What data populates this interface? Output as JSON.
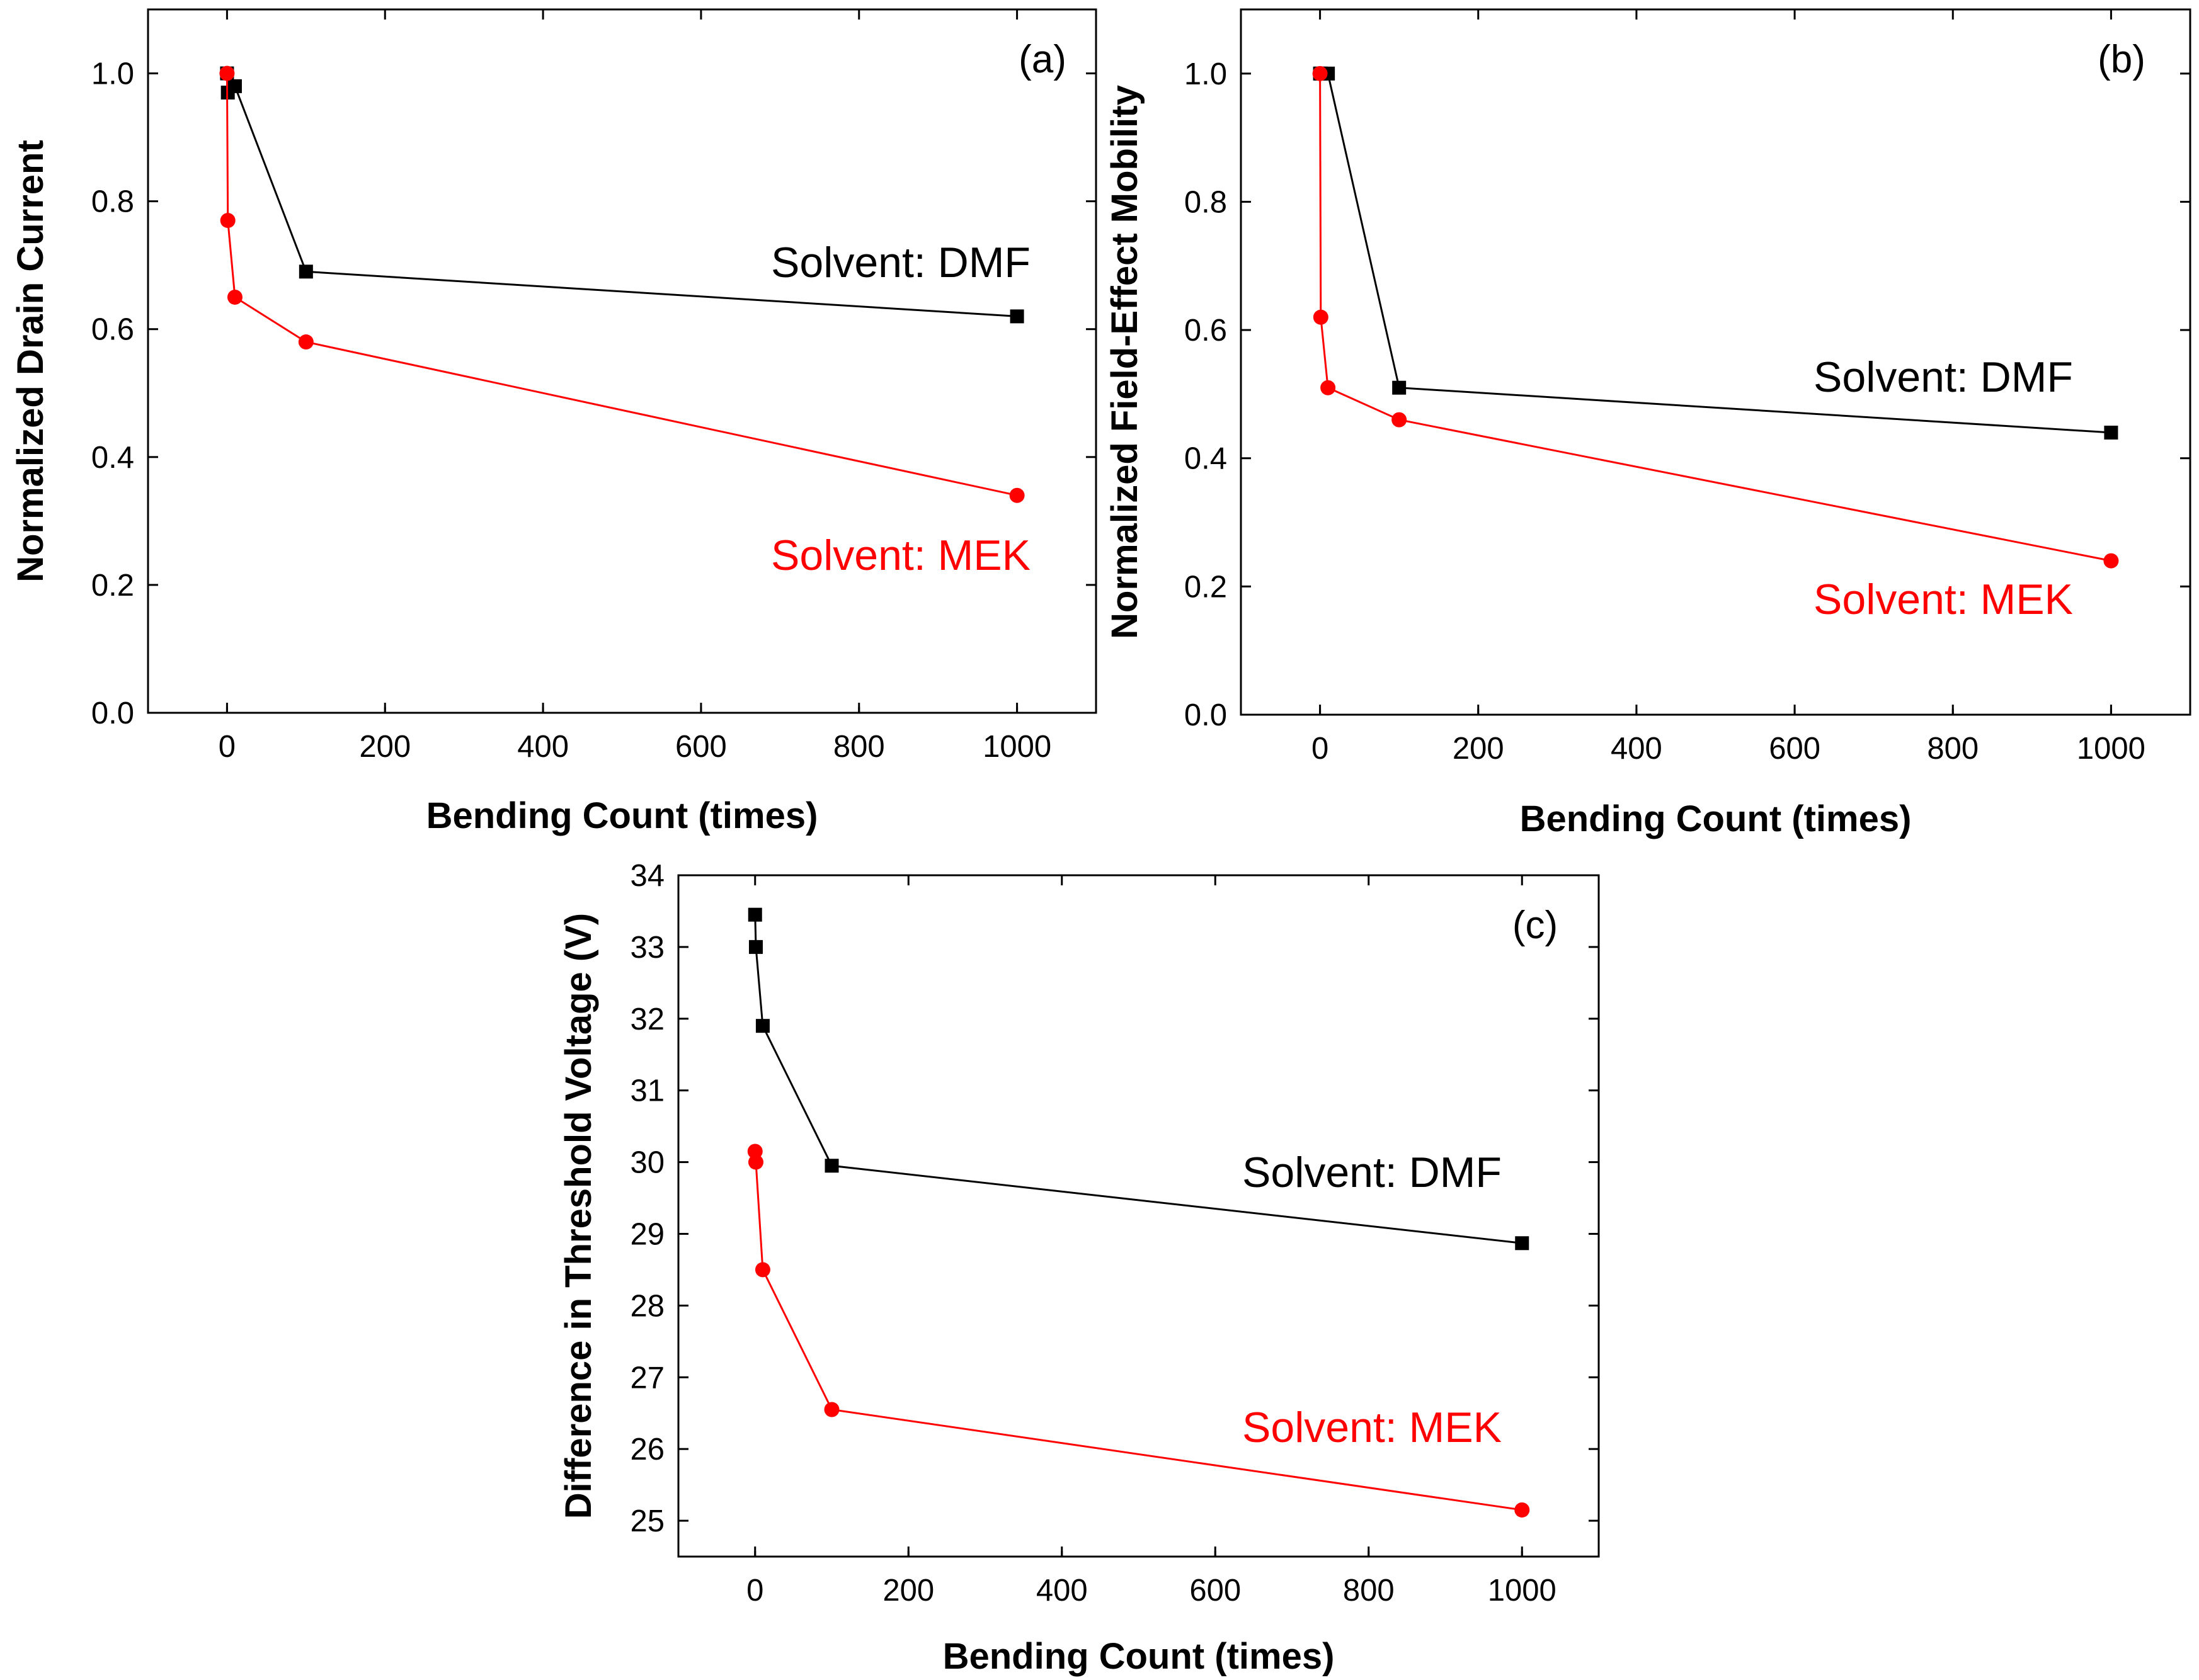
{
  "colors": {
    "dmf": "#000000",
    "mek": "#ff0000",
    "axis": "#000000"
  },
  "chart_data": [
    {
      "panel": "(a)",
      "type": "line",
      "xlabel": "Bending Count (times)",
      "ylabel": "Normalized Drain Current",
      "xlim": [
        -100,
        1100
      ],
      "ylim": [
        0.0,
        1.1
      ],
      "xticks": [
        0,
        200,
        400,
        600,
        800,
        1000
      ],
      "yticks": [
        0.0,
        0.2,
        0.4,
        0.6,
        0.8,
        1.0
      ],
      "ytick_labels": [
        "0.0",
        "0.2",
        "0.4",
        "0.6",
        "0.8",
        "1.0"
      ],
      "xtick_labels": [
        "0",
        "200",
        "400",
        "600",
        "800",
        "1000"
      ],
      "series": [
        {
          "name": "Solvent: DMF",
          "marker": "square",
          "x": [
            0,
            1,
            10,
            100,
            1000
          ],
          "y": [
            1.0,
            0.97,
            0.98,
            0.69,
            0.62
          ]
        },
        {
          "name": "Solvent: MEK",
          "marker": "circle",
          "x": [
            0,
            1,
            10,
            100,
            1000
          ],
          "y": [
            1.0,
            0.77,
            0.65,
            0.58,
            0.34
          ]
        }
      ]
    },
    {
      "panel": "(b)",
      "type": "line",
      "xlabel": "Bending Count (times)",
      "ylabel": "Normalized Field-Effect Mobility",
      "xlim": [
        -100,
        1100
      ],
      "ylim": [
        0.0,
        1.1
      ],
      "xticks": [
        0,
        200,
        400,
        600,
        800,
        1000
      ],
      "yticks": [
        0.0,
        0.2,
        0.4,
        0.6,
        0.8,
        1.0
      ],
      "ytick_labels": [
        "0.0",
        "0.2",
        "0.4",
        "0.6",
        "0.8",
        "1.0"
      ],
      "xtick_labels": [
        "0",
        "200",
        "400",
        "600",
        "800",
        "1000"
      ],
      "series": [
        {
          "name": "Solvent: DMF",
          "marker": "square",
          "x": [
            0,
            1,
            10,
            100,
            1000
          ],
          "y": [
            1.0,
            1.0,
            1.0,
            0.51,
            0.44
          ]
        },
        {
          "name": "Solvent: MEK",
          "marker": "circle",
          "x": [
            0,
            1,
            10,
            100,
            1000
          ],
          "y": [
            1.0,
            0.62,
            0.51,
            0.46,
            0.24
          ]
        }
      ]
    },
    {
      "panel": "(c)",
      "type": "line",
      "xlabel": "Bending Count (times)",
      "ylabel": "Difference in Threshold Voltage (V)",
      "xlim": [
        -100,
        1100
      ],
      "ylim": [
        24.5,
        34.0
      ],
      "xticks": [
        0,
        200,
        400,
        600,
        800,
        1000
      ],
      "yticks": [
        25,
        26,
        27,
        28,
        29,
        30,
        31,
        32,
        33,
        34
      ],
      "ytick_labels": [
        "25",
        "26",
        "27",
        "28",
        "29",
        "30",
        "31",
        "32",
        "33",
        "34"
      ],
      "xtick_labels": [
        "0",
        "200",
        "400",
        "600",
        "800",
        "1000"
      ],
      "series": [
        {
          "name": "Solvent: DMF",
          "marker": "square",
          "x": [
            0,
            1,
            10,
            100,
            1000
          ],
          "y": [
            33.45,
            33.0,
            31.9,
            29.95,
            28.87
          ]
        },
        {
          "name": "Solvent: MEK",
          "marker": "circle",
          "x": [
            0,
            1,
            10,
            100,
            1000
          ],
          "y": [
            30.15,
            30.0,
            28.5,
            26.55,
            25.15
          ]
        }
      ]
    }
  ]
}
